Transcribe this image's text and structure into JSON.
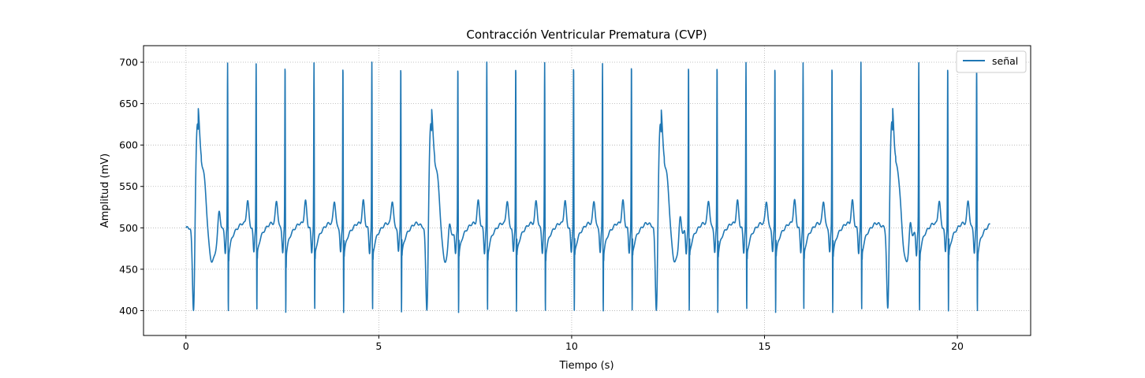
{
  "chart_data": {
    "type": "line",
    "title": "Contracción Ventricular Prematura (CVP)",
    "xlabel": "Tiempo (s)",
    "ylabel": "Amplitud (mV)",
    "xlim": [
      -1.1,
      21.9
    ],
    "ylim": [
      370,
      720
    ],
    "xticks": [
      0,
      5,
      10,
      15,
      20
    ],
    "yticks": [
      400,
      450,
      500,
      550,
      600,
      650,
      700
    ],
    "grid": true,
    "legend": "top-right",
    "series": [
      {
        "name": "señal",
        "color": "#1f77b4",
        "x_start": 0,
        "x_end": 20.85,
        "baseline": 500,
        "normal_beat_times": [
          1.08,
          1.82,
          2.57,
          3.32,
          4.07,
          4.82,
          5.57,
          7.05,
          7.8,
          8.55,
          9.3,
          10.05,
          10.8,
          11.55,
          13.03,
          13.77,
          14.52,
          15.27,
          16.0,
          16.75,
          17.5,
          19.0,
          19.75,
          20.5
        ],
        "normal_beat": {
          "r_peak": 700,
          "s_trough": 392,
          "t_peak": 530,
          "pre_dip": 470
        },
        "pvc_times": [
          0.2,
          6.25,
          12.2,
          18.2
        ],
        "pvc_beat": {
          "peak": 627,
          "trough": 386,
          "recovery": 455
        }
      }
    ]
  }
}
